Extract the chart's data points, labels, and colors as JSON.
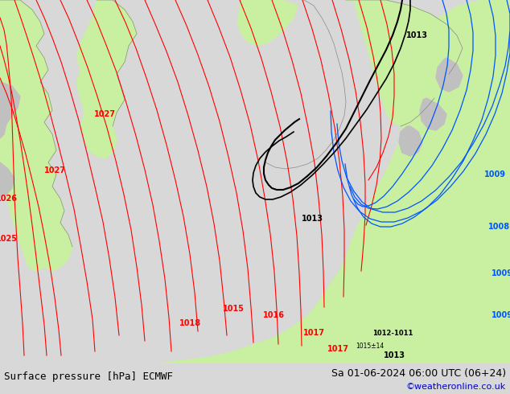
{
  "title_left": "Surface pressure [hPa] ECMWF",
  "title_right": "Sa 01-06-2024 06:00 UTC (06+24)",
  "watermark": "©weatheronline.co.uk",
  "bg_color": "#d8d8d8",
  "land_green": "#c8f0a0",
  "land_gray": "#c0c0c0",
  "bottom_bar_color": "#ffffff",
  "isobar_red": "#ff0000",
  "isobar_black": "#000000",
  "isobar_blue": "#0055ff",
  "coast_color": "#888888",
  "fig_width": 6.34,
  "fig_height": 4.9,
  "dpi": 100,
  "font_size_label": 9,
  "font_size_wm": 8,
  "font_size_isobar": 7
}
